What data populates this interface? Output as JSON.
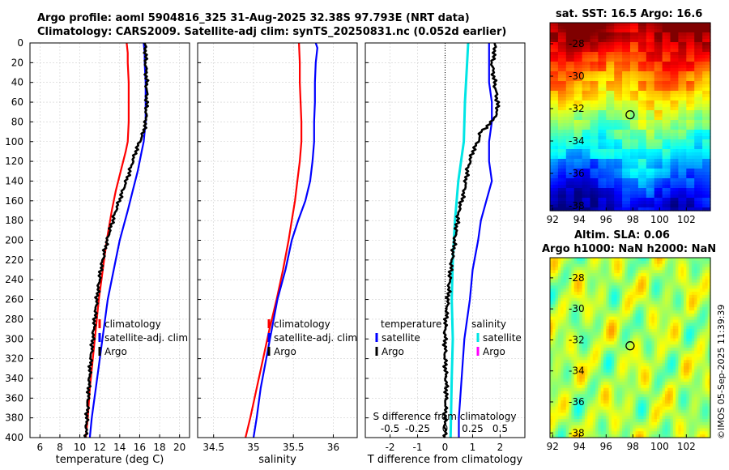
{
  "header": {
    "line1": "Argo profile: aoml 5904816_325 31-Aug-2025 32.38S 97.793E (NRT data)",
    "line2": "Climatology: CARS2009. Satellite-adj clim: synTS_20250831.nc (0.052d earlier)"
  },
  "map_sst": {
    "title": "sat. SST: 16.5 Argo: 16.6",
    "xticks": [
      "92",
      "94",
      "96",
      "98",
      "100",
      "102"
    ],
    "yticks": [
      "-28",
      "-30",
      "-32",
      "-34",
      "-36",
      "-38"
    ],
    "xlim": [
      91.8,
      103.8
    ],
    "ylim": [
      -38.3,
      -26.7
    ],
    "float_lon": 97.793,
    "float_lat": -32.38
  },
  "map_sla": {
    "title1": "Altim. SLA: 0.06",
    "title2": "Argo h1000: NaN h2000: NaN",
    "xticks": [
      "92",
      "94",
      "96",
      "98",
      "100",
      "102"
    ],
    "yticks": [
      "-28",
      "-30",
      "-32",
      "-34",
      "-36",
      "-38"
    ],
    "xlim": [
      91.8,
      103.8
    ],
    "ylim": [
      -38.3,
      -26.7
    ],
    "float_lon": 97.793,
    "float_lat": -32.38
  },
  "credit": "©IMOS 05-Sep-2025 11:39:39",
  "colors": {
    "climatology": "#ff0000",
    "satellite": "#0000ff",
    "argo": "#000000",
    "sal_satellite": "#00e5e5",
    "sal_argo": "#ff00ff"
  },
  "chart_data": [
    {
      "type": "line",
      "panel": "temperature",
      "xlabel": "temperature (deg C)",
      "ylabel": "",
      "xlim": [
        5,
        21
      ],
      "ylim": [
        400,
        0
      ],
      "xticks": [
        "6",
        "8",
        "10",
        "12",
        "14",
        "16",
        "18",
        "20"
      ],
      "yticks": [
        "0",
        "20",
        "40",
        "60",
        "80",
        "100",
        "120",
        "140",
        "160",
        "180",
        "200",
        "220",
        "240",
        "260",
        "280",
        "300",
        "320",
        "340",
        "360",
        "380",
        "400"
      ],
      "legend": [
        "climatology",
        "satellite-adj. clim",
        "Argo"
      ],
      "series": [
        {
          "name": "climatology",
          "depth": [
            0,
            10,
            20,
            40,
            60,
            80,
            100,
            110,
            130,
            150,
            170,
            200,
            230,
            260,
            290,
            320,
            350,
            380,
            400
          ],
          "values": [
            14.7,
            14.8,
            14.8,
            14.9,
            14.9,
            14.9,
            14.8,
            14.6,
            14.1,
            13.6,
            13.2,
            12.7,
            12.3,
            11.9,
            11.6,
            11.3,
            11.0,
            10.8,
            10.6
          ]
        },
        {
          "name": "satellite",
          "depth": [
            0,
            10,
            20,
            40,
            60,
            80,
            100,
            110,
            130,
            150,
            170,
            200,
            230,
            260,
            290,
            320,
            350,
            380,
            400
          ],
          "values": [
            16.4,
            16.5,
            16.5,
            16.6,
            16.6,
            16.6,
            16.4,
            16.2,
            15.8,
            15.3,
            14.8,
            14.0,
            13.4,
            12.8,
            12.4,
            12.0,
            11.6,
            11.2,
            11.0
          ]
        },
        {
          "name": "Argo",
          "depth": [
            0,
            10,
            20,
            40,
            60,
            80,
            90,
            100,
            110,
            130,
            150,
            170,
            190,
            210,
            230,
            260,
            290,
            320,
            350,
            380,
            400
          ],
          "values": [
            16.5,
            16.6,
            16.6,
            16.7,
            16.7,
            16.6,
            16.4,
            16.0,
            15.6,
            15.0,
            14.3,
            13.6,
            13.0,
            12.5,
            12.1,
            11.7,
            11.4,
            11.1,
            10.9,
            10.7,
            10.6
          ]
        }
      ]
    },
    {
      "type": "line",
      "panel": "salinity",
      "xlabel": "salinity",
      "xlim": [
        34.3,
        36.3
      ],
      "ylim": [
        400,
        0
      ],
      "xticks": [
        "34.5",
        "35",
        "35.5",
        "36"
      ],
      "legend": [
        "climatology",
        "satellite-adj. clim",
        "Argo"
      ],
      "series": [
        {
          "name": "climatology",
          "depth": [
            0,
            20,
            40,
            60,
            80,
            100,
            120,
            140,
            160,
            180,
            200,
            230,
            260,
            290,
            320,
            350,
            380,
            400
          ],
          "values": [
            35.57,
            35.58,
            35.58,
            35.59,
            35.6,
            35.6,
            35.58,
            35.55,
            35.52,
            35.48,
            35.44,
            35.37,
            35.29,
            35.2,
            35.12,
            35.04,
            34.96,
            34.9
          ]
        },
        {
          "name": "satellite",
          "depth": [
            0,
            5,
            20,
            40,
            60,
            80,
            100,
            120,
            140,
            160,
            180,
            200,
            230,
            260,
            290,
            320,
            350,
            380,
            400
          ],
          "values": [
            35.78,
            35.8,
            35.78,
            35.77,
            35.77,
            35.76,
            35.76,
            35.74,
            35.71,
            35.65,
            35.56,
            35.48,
            35.4,
            35.3,
            35.23,
            35.16,
            35.09,
            35.04,
            35.0
          ]
        }
      ]
    },
    {
      "type": "line",
      "panel": "difference",
      "xlabel": "T difference from climatology",
      "x2label": "S difference from climatology",
      "xlim": [
        -2.9,
        2.9
      ],
      "ylim": [
        400,
        0
      ],
      "xticks": [
        "-2",
        "-1",
        "0",
        "1",
        "2"
      ],
      "x2ticks": [
        "-0.5",
        "-0.25",
        "0",
        "0.25",
        "0.5"
      ],
      "legend_left_title": "temperature",
      "legend_right_title": "salinity",
      "legend_left": [
        "satellite",
        "Argo"
      ],
      "legend_right": [
        "satellite",
        "Argo"
      ],
      "series": [
        {
          "name": "temperature satellite",
          "depth": [
            0,
            20,
            40,
            60,
            80,
            100,
            120,
            140,
            160,
            180,
            200,
            230,
            260,
            300,
            340,
            380,
            400
          ],
          "values": [
            1.6,
            1.6,
            1.6,
            1.7,
            1.7,
            1.6,
            1.6,
            1.7,
            1.5,
            1.3,
            1.2,
            1.0,
            0.9,
            0.7,
            0.6,
            0.5,
            0.5
          ]
        },
        {
          "name": "temperature Argo",
          "depth": [
            0,
            10,
            20,
            40,
            60,
            70,
            80,
            90,
            100,
            110,
            130,
            150,
            170,
            190,
            210,
            230,
            260,
            290,
            320,
            350,
            380,
            400
          ],
          "values": [
            1.8,
            1.8,
            1.7,
            1.8,
            1.9,
            1.9,
            1.7,
            1.3,
            1.2,
            1.0,
            0.8,
            0.7,
            0.5,
            0.4,
            0.3,
            0.2,
            0.1,
            0.0,
            0.0,
            0.05,
            0.0,
            0.0
          ]
        },
        {
          "name": "salinity satellite",
          "depth": [
            0,
            20,
            60,
            100,
            140,
            180,
            220,
            260,
            300,
            340,
            400
          ],
          "values": [
            0.21,
            0.2,
            0.18,
            0.17,
            0.12,
            0.09,
            0.07,
            0.06,
            0.07,
            0.06,
            0.05
          ]
        }
      ]
    }
  ]
}
